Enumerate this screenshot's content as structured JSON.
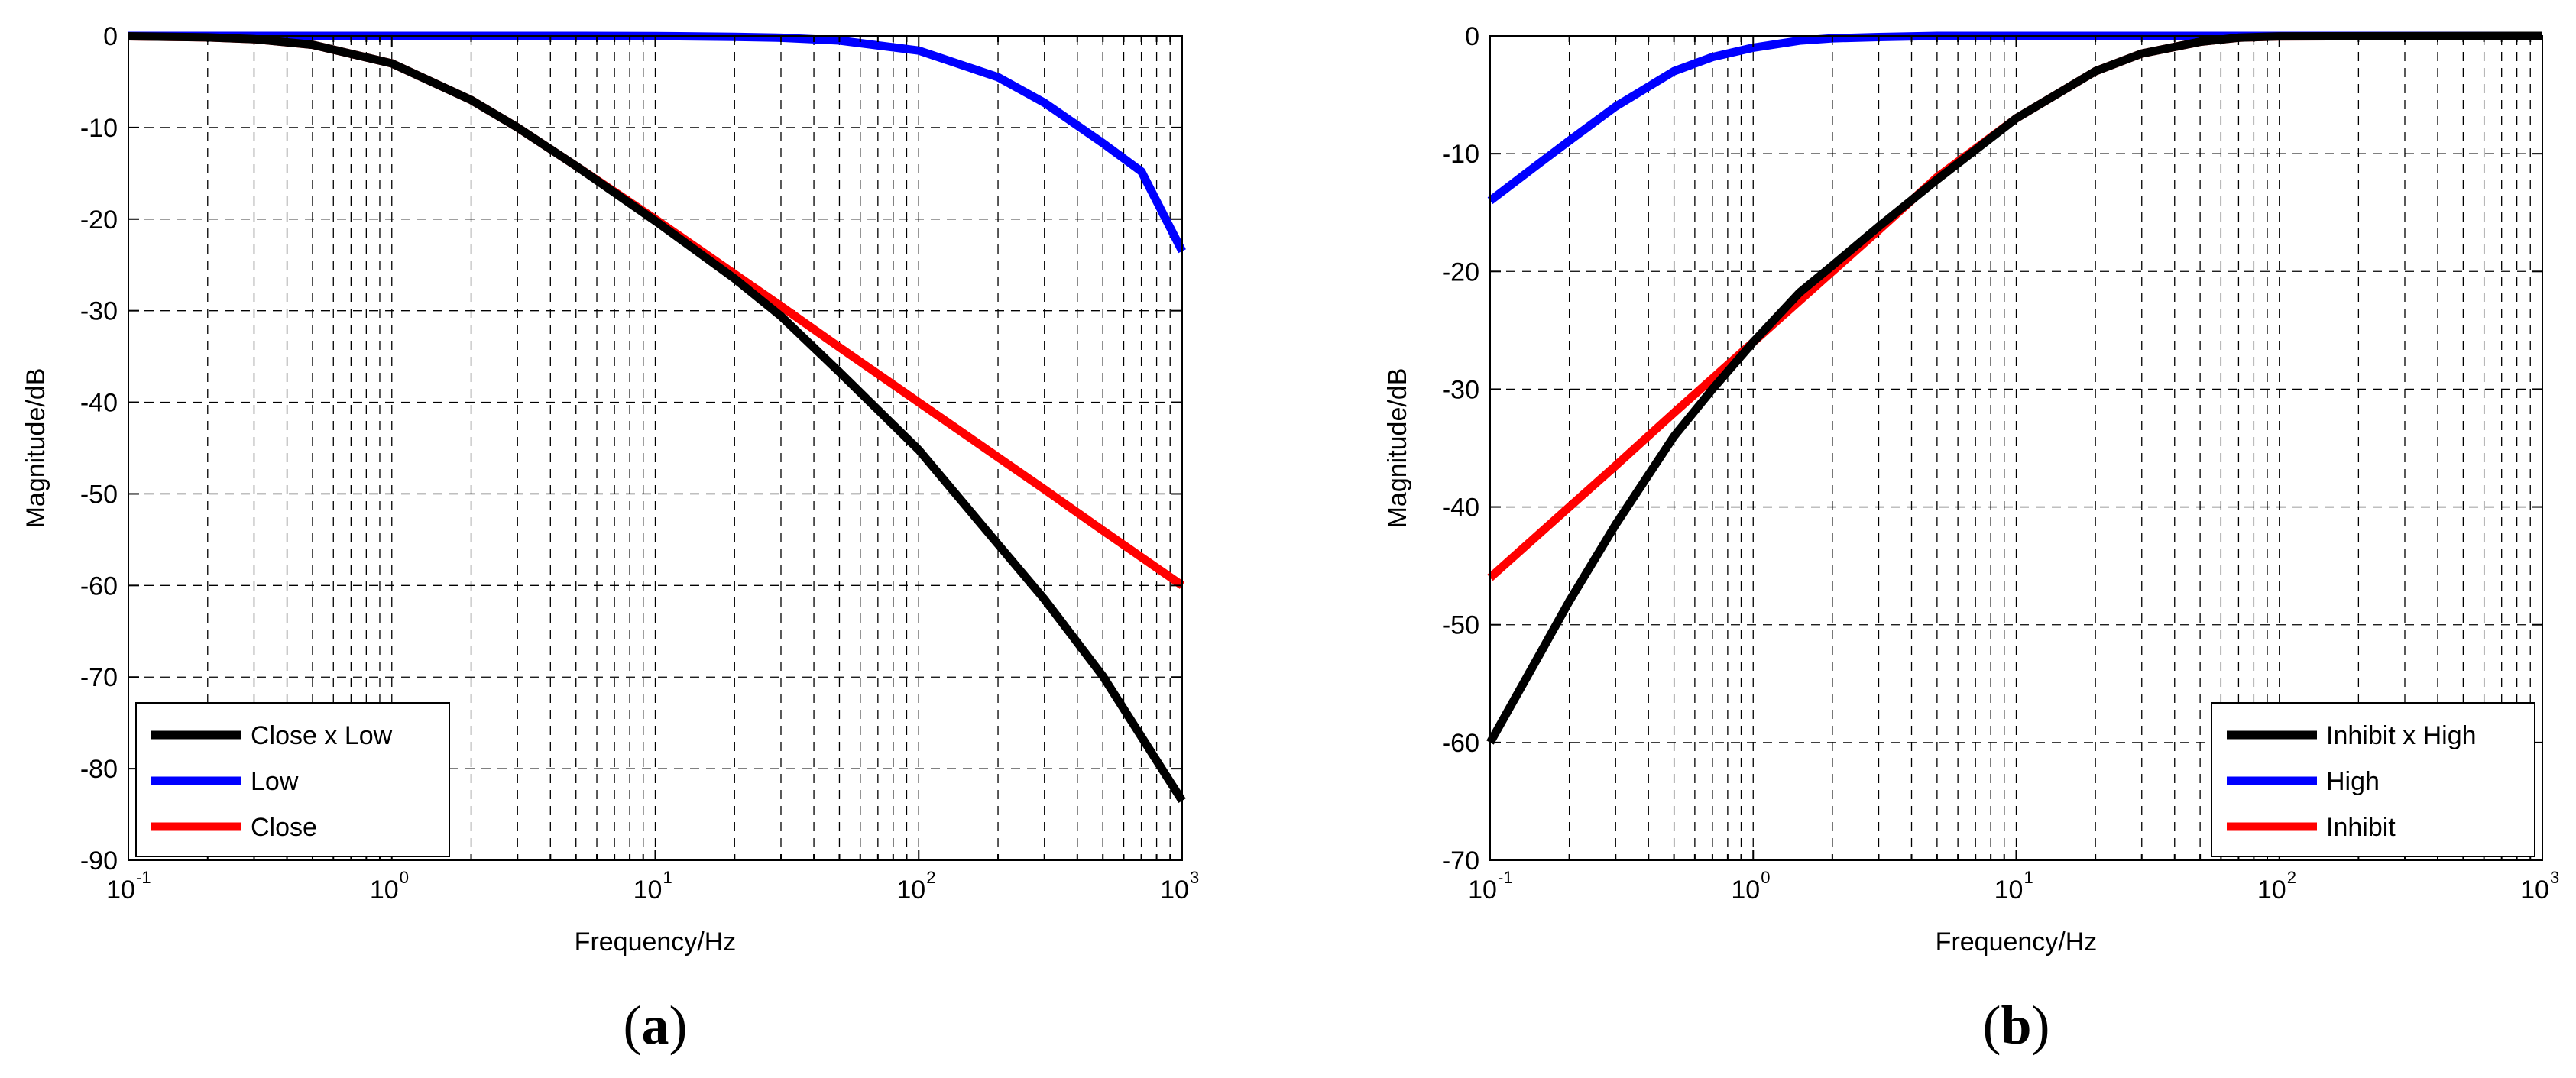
{
  "chart_data": [
    {
      "type": "line",
      "panel_label_open": "(",
      "panel_label_letter": "a",
      "panel_label_close": ")",
      "xlabel": "Frequency/Hz",
      "ylabel": "Magnitude/dB",
      "xscale": "log",
      "xlim": [
        0.1,
        1000
      ],
      "ylim": [
        -90,
        0
      ],
      "yticks": [
        0,
        -10,
        -20,
        -30,
        -40,
        -50,
        -60,
        -70,
        -80,
        -90
      ],
      "xticks": [
        {
          "base": "10",
          "exp": "-1"
        },
        {
          "base": "10",
          "exp": "0"
        },
        {
          "base": "10",
          "exp": "1"
        },
        {
          "base": "10",
          "exp": "2"
        },
        {
          "base": "10",
          "exp": "3"
        }
      ],
      "grid": true,
      "legend_position": "bottom-left",
      "series": [
        {
          "name": "Close x Low",
          "color": "#000000",
          "x": [
            0.1,
            0.2,
            0.3,
            0.5,
            1,
            2,
            3,
            5,
            10,
            20,
            30,
            50,
            100,
            200,
            300,
            500,
            1000
          ],
          "y": [
            -0.04,
            -0.16,
            -0.35,
            -0.97,
            -3.0,
            -7.0,
            -10.0,
            -14.2,
            -20.2,
            -26.5,
            -30.6,
            -36.7,
            -45.2,
            -55.5,
            -61.5,
            -69.9,
            -83.5
          ]
        },
        {
          "name": "Low",
          "color": "#0000ff",
          "x": [
            0.1,
            1,
            5,
            10,
            20,
            30,
            50,
            100,
            200,
            300,
            500,
            700,
            1000
          ],
          "y": [
            0,
            0,
            0,
            -0.02,
            -0.1,
            -0.2,
            -0.5,
            -1.6,
            -4.5,
            -7.3,
            -11.7,
            -14.8,
            -23.5
          ]
        },
        {
          "name": "Close",
          "color": "#ff0000",
          "x": [
            0.1,
            0.2,
            0.3,
            0.5,
            1,
            2,
            3,
            5,
            10,
            20,
            30,
            50,
            100,
            200,
            300,
            500,
            1000
          ],
          "y": [
            -0.04,
            -0.16,
            -0.35,
            -0.97,
            -3.0,
            -7.0,
            -10.0,
            -14.2,
            -20.0,
            -26.0,
            -29.5,
            -34.0,
            -40.0,
            -46.0,
            -49.5,
            -54.0,
            -60.0
          ]
        }
      ]
    },
    {
      "type": "line",
      "panel_label_open": "(",
      "panel_label_letter": "b",
      "panel_label_close": ")",
      "xlabel": "Frequency/Hz",
      "ylabel": "Magnitude/dB",
      "xscale": "log",
      "xlim": [
        0.1,
        1000
      ],
      "ylim": [
        -70,
        0
      ],
      "yticks": [
        0,
        -10,
        -20,
        -30,
        -40,
        -50,
        -60,
        -70
      ],
      "xticks": [
        {
          "base": "10",
          "exp": "-1"
        },
        {
          "base": "10",
          "exp": "0"
        },
        {
          "base": "10",
          "exp": "1"
        },
        {
          "base": "10",
          "exp": "2"
        },
        {
          "base": "10",
          "exp": "3"
        }
      ],
      "grid": true,
      "legend_position": "bottom-right",
      "series": [
        {
          "name": "Inhibit x High",
          "color": "#000000",
          "x": [
            0.1,
            0.15,
            0.2,
            0.3,
            0.5,
            0.7,
            1,
            1.5,
            2,
            3,
            5,
            10,
            20,
            30,
            50,
            70,
            100,
            1000
          ],
          "y": [
            -60.0,
            -53.0,
            -48.0,
            -41.5,
            -34.0,
            -30.0,
            -26.0,
            -21.8,
            -19.5,
            -16.2,
            -12.2,
            -7.0,
            -3.0,
            -1.5,
            -0.5,
            -0.15,
            -0.04,
            0
          ]
        },
        {
          "name": "High",
          "color": "#0000ff",
          "x": [
            0.1,
            0.15,
            0.2,
            0.3,
            0.5,
            0.7,
            1,
            1.5,
            2,
            3,
            5,
            10,
            1000
          ],
          "y": [
            -14.0,
            -11.0,
            -8.9,
            -6.0,
            -3.0,
            -1.8,
            -1.0,
            -0.4,
            -0.2,
            -0.1,
            0,
            0,
            0
          ]
        },
        {
          "name": "Inhibit",
          "color": "#ff0000",
          "x": [
            0.1,
            0.2,
            0.3,
            0.5,
            1,
            2,
            3,
            5,
            10,
            20,
            30,
            50,
            70,
            100,
            1000
          ],
          "y": [
            -46.0,
            -40.0,
            -36.5,
            -32.0,
            -26.0,
            -20.0,
            -16.5,
            -12.0,
            -7.0,
            -3.0,
            -1.5,
            -0.5,
            -0.15,
            -0.04,
            0
          ]
        }
      ]
    }
  ]
}
